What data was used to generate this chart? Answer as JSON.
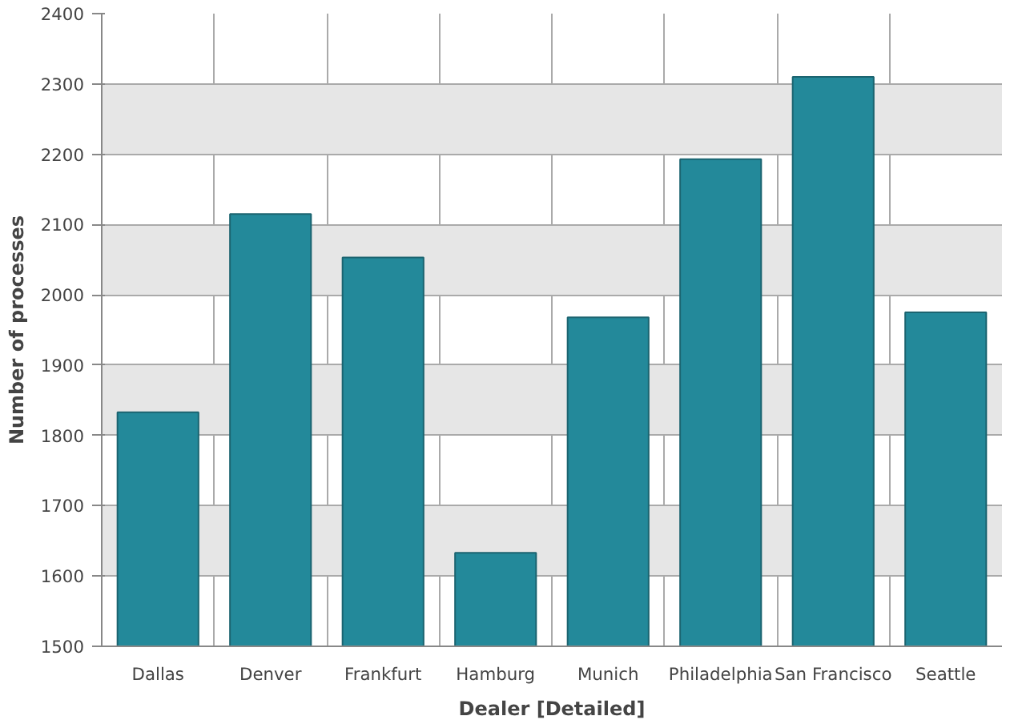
{
  "chart_data": {
    "type": "bar",
    "xlabel": "Dealer [Detailed]",
    "ylabel": "Number of processes",
    "categories": [
      "Dallas",
      "Denver",
      "Frankfurt",
      "Hamburg",
      "Munich",
      "Philadelphia",
      "San Francisco",
      "Seattle"
    ],
    "values": [
      1833,
      2115,
      2053,
      1633,
      1968,
      2193,
      2310,
      1975
    ],
    "color": "#23899a",
    "ylim": [
      1500,
      2400
    ],
    "yticks": [
      1500,
      1600,
      1700,
      1800,
      1900,
      2000,
      2100,
      2200,
      2300,
      2400
    ],
    "grid": true
  }
}
